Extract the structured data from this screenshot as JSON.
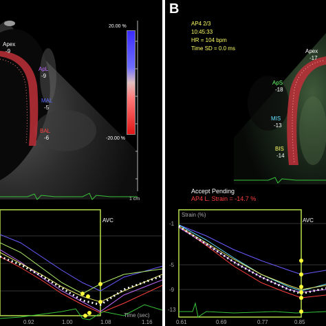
{
  "panel_a": {
    "letter": "",
    "labels": {
      "apex_name": "Apex",
      "apex_val": "-9",
      "aplat_name": "ApL",
      "aplat_val": "-9",
      "mal_name": "MAL",
      "mal_val": "-5",
      "bal_name": "BAL",
      "bal_val": "-6"
    },
    "scale_top": "20.00 %",
    "scale_bottom": "-20.00 %",
    "depth_label": "1 cm",
    "graph": {
      "x_ticks": [
        "0.92",
        "1.00",
        "1.08",
        "1.16"
      ],
      "x_axis_label": "Time (sec)",
      "avc_label": "AVC"
    }
  },
  "panel_b": {
    "letter": "B",
    "info": {
      "view": "AP4 2/3",
      "time": "10:45:33",
      "hr": "HR = 104 bpm",
      "time_sd": "Time SD = 0.0 ms"
    },
    "labels": {
      "apex_name": "Apex",
      "apex_val": "-17",
      "aps_name": "ApS",
      "aps_val": "-18",
      "mis_name": "MIS",
      "mis_val": "-13",
      "bis_name": "BIS",
      "bis_val": "-14"
    },
    "status": "Accept Pending",
    "strain_result": "AP4 L. Strain = -14.7 %",
    "graph": {
      "y_axis_label": "Strain (%)",
      "y_ticks": [
        "-1",
        "-5",
        "-9",
        "-13"
      ],
      "x_ticks": [
        "0.61",
        "0.69",
        "0.77",
        "0.85"
      ],
      "avc_label": "AVC"
    }
  },
  "colors": {
    "background": "#000000",
    "info_text": "#ffff66",
    "strain_text": "#ff4040",
    "avc_box": "#b7e04a",
    "ecg": "#39c43a"
  }
}
